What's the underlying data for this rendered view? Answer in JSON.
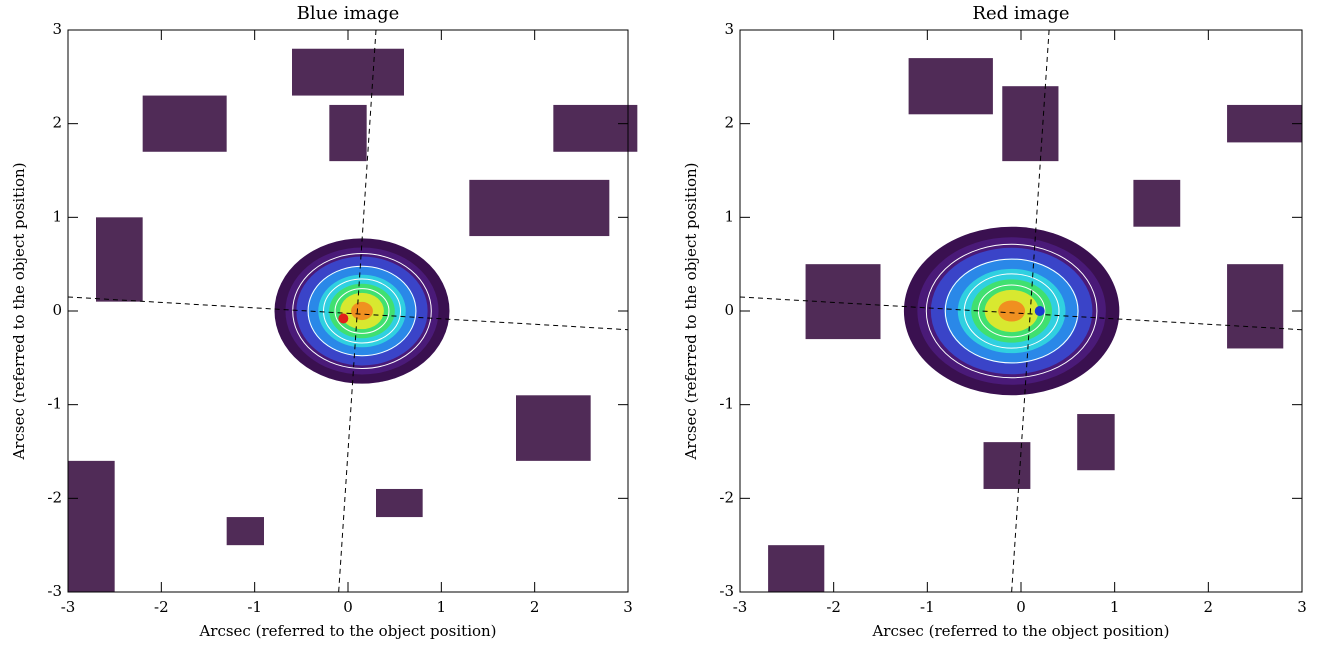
{
  "chart_data": [
    {
      "type": "image",
      "title": "Blue image",
      "x_label": "Arcsec (referred to the object position)",
      "y_label": "Arcsec (referred to the object position)",
      "xlim": [
        -3,
        3
      ],
      "ylim": [
        -3,
        3
      ],
      "xticks": [
        -3,
        -2,
        -1,
        0,
        1,
        2,
        3
      ],
      "yticks": [
        -3,
        -2,
        -1,
        0,
        1,
        2,
        3
      ],
      "markers": [
        {
          "x": -0.05,
          "y": -0.08,
          "color": "#e0201a"
        }
      ]
    },
    {
      "type": "image",
      "title": "Red image",
      "x_label": "Arcsec (referred to the object position)",
      "y_label": "Arcsec (referred to the object position)",
      "xlim": [
        -3,
        3
      ],
      "ylim": [
        -3,
        3
      ],
      "xticks": [
        -3,
        -2,
        -1,
        0,
        1,
        2,
        3
      ],
      "yticks": [
        -3,
        -2,
        -1,
        0,
        1,
        2,
        3
      ],
      "markers": [
        {
          "x": 0.2,
          "y": 0.0,
          "color": "#1a3cd0"
        }
      ]
    }
  ]
}
